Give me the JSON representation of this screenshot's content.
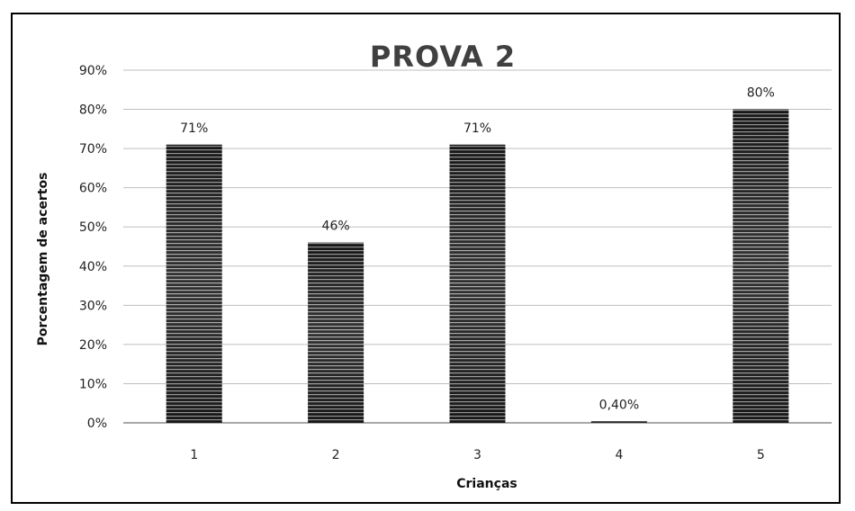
{
  "chart_data": {
    "type": "bar",
    "title": "PROVA 2",
    "xlabel": "Crianças",
    "ylabel": "Porcentagem de acertos",
    "categories": [
      "1",
      "2",
      "3",
      "4",
      "5"
    ],
    "values": [
      71,
      46,
      71,
      0.4,
      80
    ],
    "value_labels": [
      "71%",
      "46%",
      "71%",
      "0,40%",
      "80%"
    ],
    "ylim": [
      0,
      90
    ],
    "yticks": [
      "0%",
      "10%",
      "20%",
      "30%",
      "40%",
      "50%",
      "60%",
      "70%",
      "80%",
      "90%"
    ],
    "grid": true,
    "legend": "none",
    "colors": {
      "bar_dark": "#111111",
      "bar_light": "#9a9a9a",
      "grid": "#bfbfbf",
      "title": "#404040"
    }
  }
}
